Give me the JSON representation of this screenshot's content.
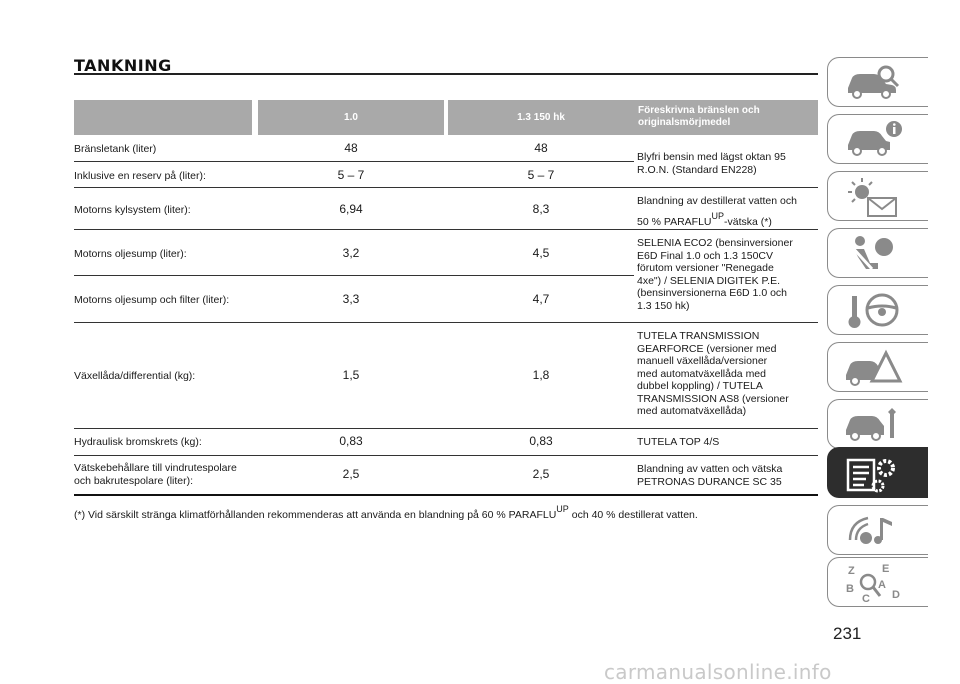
{
  "page_title": "TANKNING",
  "table": {
    "headers": [
      "",
      "1.0",
      "1.3 150 hk",
      "Föreskrivna bränslen och originalsmörjmedel"
    ],
    "rows": [
      {
        "label": "Bränsletank (liter)",
        "v1": "48",
        "v2": "48"
      },
      {
        "label": "Inklusive en reserv på (liter):",
        "v1": "5 – 7",
        "v2": "5 – 7"
      },
      {
        "label": "Motorns kylsystem (liter):",
        "v1": "6,94",
        "v2": "8,3"
      },
      {
        "label": "Motorns oljesump (liter):",
        "v1": "3,2",
        "v2": "4,5"
      },
      {
        "label": "Motorns oljesump och filter (liter):",
        "v1": "3,3",
        "v2": "4,7"
      },
      {
        "label": "Växellåda/differential (kg):",
        "v1": "1,5",
        "v2": "1,8"
      },
      {
        "label": "Hydraulisk bromskrets (kg):",
        "v1": "0,83",
        "v2": "0,83"
      },
      {
        "label_lines": [
          "Vätskebehållare till vindrutespolare",
          "och bakrutespolare (liter):"
        ],
        "v1": "2,5",
        "v2": "2,5"
      }
    ],
    "fluids": {
      "fuel": [
        "Blyfri bensin med lägst oktan 95",
        "R.O.N. (Standard EN228)"
      ],
      "coolant_line1": "Blandning av destillerat vatten och",
      "coolant_line2_pre": "50 % PARAFLU",
      "coolant_sup": "UP",
      "coolant_line2_post": "-vätska (*)",
      "oil": [
        "SELENIA ECO2 (bensinversioner",
        "E6D Final 1.0 och 1.3 150CV",
        "förutom versioner \"Renegade",
        "4xe\") / SELENIA DIGITEK P.E.",
        "(bensinversionerna E6D 1.0 och",
        "1.3 150 hk)"
      ],
      "gearbox": [
        "TUTELA TRANSMISSION",
        "GEARFORCE (versioner med",
        "manuell växellåda/versioner",
        "med automatväxellåda med",
        "dubbel koppling) / TUTELA",
        "TRANSMISSION AS8 (versioner",
        "med automatväxellåda)"
      ],
      "brake": "TUTELA TOP 4/S",
      "washer": [
        "Blandning av vatten och vätska",
        "PETRONAS DURANCE SC 35"
      ]
    }
  },
  "footnote": {
    "pre": "(*) Vid särskilt stränga klimatförhållanden rekommenderas att använda en blandning på 60 % PARAFLU",
    "sup": "UP",
    "post": "och 40 % destillerat vatten."
  },
  "side_tabs": [
    {
      "icon": "car-search-icon"
    },
    {
      "icon": "car-info-icon"
    },
    {
      "icon": "warning-light-message-icon"
    },
    {
      "icon": "airbag-seat-icon"
    },
    {
      "icon": "key-steering-wheel-icon"
    },
    {
      "icon": "car-warning-triangle-icon"
    },
    {
      "icon": "car-wrench-icon"
    },
    {
      "icon": "spec-sheet-gear-icon",
      "active": true
    },
    {
      "icon": "multimedia-music-icon"
    },
    {
      "icon": "alphabet-index-icon"
    }
  ],
  "page_number": "231",
  "watermark": "carmanualsonline.info",
  "colors": {
    "header_bg": "#a9a9a9",
    "active_tab": "#2d2d2d",
    "tab_border": "#8a8a8a"
  }
}
